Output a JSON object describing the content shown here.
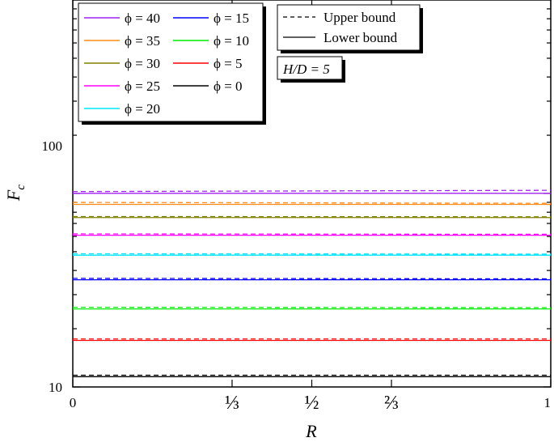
{
  "chart_data": {
    "type": "line",
    "xlabel": "R",
    "ylabel": "F",
    "ylabel_subscript": "c",
    "xlim": [
      0,
      1
    ],
    "ylim": [
      10,
      1000
    ],
    "yscale": "log",
    "x_ticks": [
      {
        "value": 0,
        "label": "0"
      },
      {
        "value": 0.3333,
        "label": "⅓"
      },
      {
        "value": 0.5,
        "label": "½"
      },
      {
        "value": 0.6667,
        "label": "⅔"
      },
      {
        "value": 1,
        "label": "1"
      }
    ],
    "y_ticks": [
      {
        "value": 10,
        "label": "10"
      },
      {
        "value": 100,
        "label": "100"
      }
    ],
    "annotation": "H/D = 5",
    "style_legend": [
      {
        "label": "Upper bound",
        "style": "dashed"
      },
      {
        "label": "Lower bound",
        "style": "solid"
      }
    ],
    "series": [
      {
        "name": "ϕ = 40",
        "phi": "40",
        "color": "#a020f0",
        "lower": [
          [
            0,
            100.2
          ],
          [
            1,
            100.2
          ]
        ],
        "upper": [
          [
            0,
            102.3
          ],
          [
            1,
            103.8
          ]
        ]
      },
      {
        "name": "ϕ = 35",
        "phi": "35",
        "color": "#ff8c1a",
        "lower": [
          [
            0,
            87.8
          ],
          [
            1,
            87.8
          ]
        ],
        "upper": [
          [
            0,
            89.9
          ],
          [
            1,
            88.9
          ]
        ]
      },
      {
        "name": "ϕ = 30",
        "phi": "30",
        "color": "#808000",
        "lower": [
          [
            0,
            75.1
          ],
          [
            1,
            75.1
          ]
        ],
        "upper": [
          [
            0,
            76.0
          ],
          [
            1,
            75.8
          ]
        ]
      },
      {
        "name": "ϕ = 25",
        "phi": "25",
        "color": "#ff00ff",
        "lower": [
          [
            0,
            60.8
          ],
          [
            1,
            60.8
          ]
        ],
        "upper": [
          [
            0,
            61.8
          ],
          [
            1,
            61.5
          ]
        ]
      },
      {
        "name": "ϕ = 20",
        "phi": "20",
        "color": "#00e5ff",
        "lower": [
          [
            0,
            48.0
          ],
          [
            1,
            48.0
          ]
        ],
        "upper": [
          [
            0,
            48.8
          ],
          [
            1,
            48.6
          ]
        ]
      },
      {
        "name": "ϕ = 15",
        "phi": "15",
        "color": "#0000ff",
        "lower": [
          [
            0,
            35.8
          ],
          [
            1,
            35.8
          ]
        ],
        "upper": [
          [
            0,
            36.4
          ],
          [
            1,
            36.2
          ]
        ]
      },
      {
        "name": "ϕ = 10",
        "phi": "10",
        "color": "#00ee00",
        "lower": [
          [
            0,
            25.3
          ],
          [
            1,
            25.3
          ]
        ],
        "upper": [
          [
            0,
            25.8
          ],
          [
            1,
            25.7
          ]
        ]
      },
      {
        "name": "ϕ = 5",
        "phi": "5",
        "color": "#ff0000",
        "lower": [
          [
            0,
            17.4
          ],
          [
            1,
            17.4
          ]
        ],
        "upper": [
          [
            0,
            17.7
          ],
          [
            1,
            17.7
          ]
        ]
      },
      {
        "name": "ϕ = 0",
        "phi": "0",
        "color": "#000000",
        "lower": [
          [
            0,
            11.3
          ],
          [
            1,
            11.3
          ]
        ],
        "upper": [
          [
            0,
            11.5
          ],
          [
            1,
            11.5
          ]
        ]
      }
    ]
  }
}
